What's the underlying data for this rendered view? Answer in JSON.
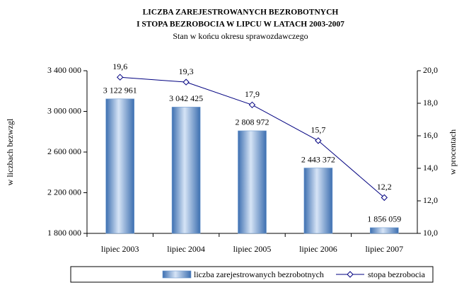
{
  "chart_data": {
    "type": "bar",
    "title": [
      "LICZBA ZAREJESTROWANYCH BEZROBOTNYCH",
      "I STOPA BEZROBOCIA W LIPCU W LATACH 2003-2007"
    ],
    "subtitle": "Stan w końcu okresu sprawozdawczego",
    "y_label": "w liczbach bezwzgl",
    "y2_label": "w procentach",
    "categories": [
      "lipiec 2003",
      "lipiec 2004",
      "lipiec 2005",
      "lipiec 2006",
      "lipiec 2007"
    ],
    "series": [
      {
        "name": "liczba zarejestrowanych bezrobotnych",
        "color": "#6f9bd1",
        "values": [
          3122961,
          3042425,
          2808972,
          2443372,
          1856059
        ],
        "value_labels": [
          "3 122 961",
          "3 042 425",
          "2 808 972",
          "2 443 372",
          "1 856 059"
        ]
      },
      {
        "name": "stopa bezrobocia",
        "color": "#000080",
        "axis": "y2",
        "values": [
          19.6,
          19.3,
          17.9,
          15.7,
          12.2
        ],
        "value_labels": [
          "19,6",
          "19,3",
          "17,9",
          "15,7",
          "12,2"
        ]
      }
    ],
    "ylim": [
      1800000,
      3400000
    ],
    "yticks": [
      {
        "value": 1800000,
        "label": "1 800 000"
      },
      {
        "value": 2200000,
        "label": "2 200 000"
      },
      {
        "value": 2600000,
        "label": "2 600 000"
      },
      {
        "value": 3000000,
        "label": "3 000 000"
      },
      {
        "value": 3400000,
        "label": "3 400 000"
      }
    ],
    "y2lim": [
      10,
      20
    ],
    "y2ticks": [
      {
        "value": 10,
        "label": "10,0"
      },
      {
        "value": 12,
        "label": "12,0"
      },
      {
        "value": 14,
        "label": "14,0"
      },
      {
        "value": 16,
        "label": "16,0"
      },
      {
        "value": 18,
        "label": "18,0"
      },
      {
        "value": 20,
        "label": "20,0"
      }
    ],
    "grid": false
  }
}
